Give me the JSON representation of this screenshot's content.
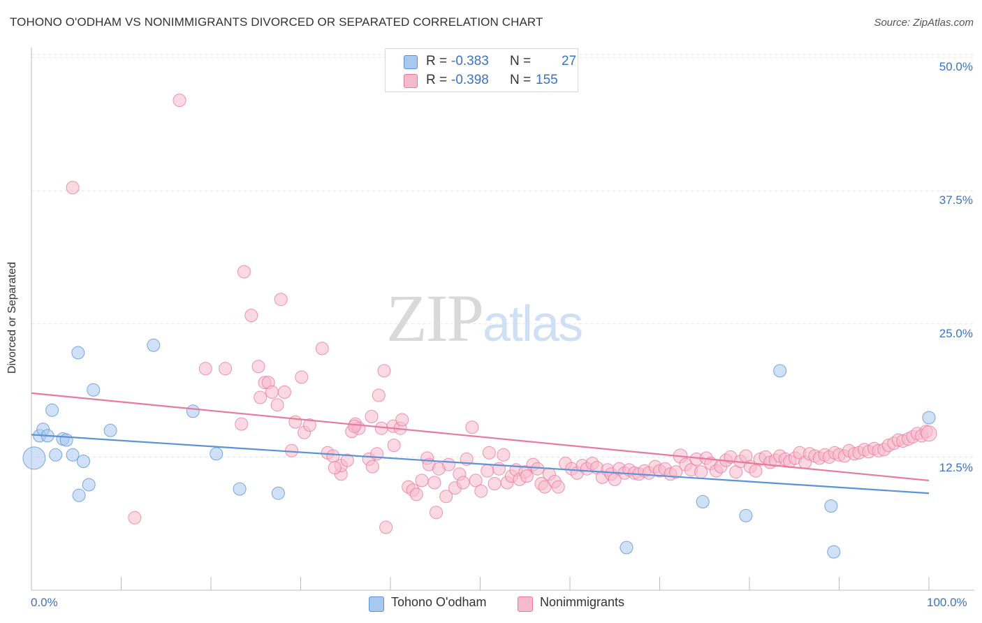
{
  "header": {
    "title": "TOHONO O'ODHAM VS NONIMMIGRANTS DIVORCED OR SEPARATED CORRELATION CHART",
    "source": "Source: ZipAtlas.com"
  },
  "watermark": {
    "zip": "ZIP",
    "atlas": "atlas"
  },
  "legend": {
    "rows": [
      {
        "r_label": "R =",
        "r_value": "-0.383",
        "n_label": "N =",
        "n_value": "27",
        "color": "#a9c8f0"
      },
      {
        "r_label": "R =",
        "r_value": "-0.398",
        "n_label": "N =",
        "n_value": "155",
        "color": "#f7b9cc"
      }
    ]
  },
  "bottom_legend": [
    {
      "label": "Tohono O'odham",
      "color": "#a9c8f0"
    },
    {
      "label": "Nonimmigrants",
      "color": "#f7b9cc"
    }
  ],
  "chart_data": {
    "type": "scatter",
    "ylabel": "Divorced or Separated",
    "xlabel": "",
    "xlim": [
      0,
      100
    ],
    "ylim": [
      0,
      52
    ],
    "x_tick_labels": [
      "0.0%",
      "100.0%"
    ],
    "y_ticks": [
      {
        "value": 12.5,
        "label": "12.5%"
      },
      {
        "value": 25.0,
        "label": "25.0%"
      },
      {
        "value": 37.5,
        "label": "37.5%"
      },
      {
        "value": 50.0,
        "label": "50.0%"
      }
    ],
    "grid": true,
    "legend_position": "top-center",
    "series": [
      {
        "name": "Tohono O'odham",
        "color": "#5b93d6",
        "fill": "#a9c8f0",
        "trend": {
          "x": [
            0,
            100
          ],
          "y": [
            14.6,
            9.1
          ]
        },
        "points": [
          [
            0.3,
            12.4,
            16
          ],
          [
            0.9,
            14.5,
            9
          ],
          [
            1.3,
            15.1,
            9
          ],
          [
            1.8,
            14.5,
            9
          ],
          [
            2.3,
            16.9,
            9
          ],
          [
            2.7,
            12.7,
            9
          ],
          [
            3.5,
            14.2,
            9
          ],
          [
            3.9,
            14.1,
            9
          ],
          [
            4.6,
            12.7,
            9
          ],
          [
            5.2,
            22.3,
            9
          ],
          [
            5.3,
            8.9,
            9
          ],
          [
            5.8,
            12.1,
            9
          ],
          [
            6.4,
            9.9,
            9
          ],
          [
            6.9,
            18.8,
            9
          ],
          [
            8.8,
            15.0,
            9
          ],
          [
            13.6,
            23.0,
            9
          ],
          [
            18.0,
            16.8,
            9
          ],
          [
            20.6,
            12.8,
            9
          ],
          [
            23.2,
            9.5,
            9
          ],
          [
            27.5,
            9.1,
            9
          ],
          [
            74.8,
            8.3,
            9
          ],
          [
            79.6,
            7.0,
            9
          ],
          [
            83.4,
            20.6,
            9
          ],
          [
            66.3,
            4.0,
            9
          ],
          [
            89.1,
            7.9,
            9
          ],
          [
            89.4,
            3.6,
            9
          ],
          [
            100.0,
            16.2,
            9
          ]
        ]
      },
      {
        "name": "Nonimmigrants",
        "color": "#e8799f",
        "fill": "#f7b9cc",
        "trend": {
          "x": [
            0,
            100
          ],
          "y": [
            18.5,
            10.3
          ]
        },
        "points": [
          [
            4.6,
            37.8,
            9
          ],
          [
            11.5,
            6.8,
            9
          ],
          [
            16.5,
            46.0,
            9
          ],
          [
            19.4,
            20.8,
            9
          ],
          [
            21.6,
            20.8,
            9
          ],
          [
            23.4,
            15.6,
            9
          ],
          [
            23.7,
            29.9,
            9
          ],
          [
            24.5,
            25.8,
            9
          ],
          [
            25.3,
            21.0,
            9
          ],
          [
            25.5,
            18.1,
            9
          ],
          [
            26.0,
            19.5,
            9
          ],
          [
            26.4,
            19.5,
            9
          ],
          [
            26.8,
            18.6,
            9
          ],
          [
            27.4,
            17.4,
            9
          ],
          [
            27.8,
            27.3,
            9
          ],
          [
            28.2,
            18.6,
            9
          ],
          [
            29.0,
            13.1,
            9
          ],
          [
            29.4,
            15.8,
            9
          ],
          [
            30.1,
            20.0,
            9
          ],
          [
            30.4,
            14.8,
            9
          ],
          [
            31.0,
            15.5,
            9
          ],
          [
            32.4,
            22.7,
            9
          ],
          [
            33.0,
            12.9,
            9
          ],
          [
            33.6,
            12.6,
            9
          ],
          [
            34.5,
            10.9,
            9
          ],
          [
            34.5,
            11.7,
            9
          ],
          [
            35.2,
            12.2,
            9
          ],
          [
            35.7,
            14.9,
            9
          ],
          [
            36.1,
            15.6,
            9
          ],
          [
            36.5,
            15.2,
            9
          ],
          [
            37.6,
            12.3,
            9
          ],
          [
            37.9,
            16.3,
            9
          ],
          [
            38.0,
            11.6,
            9
          ],
          [
            38.7,
            18.3,
            9
          ],
          [
            39.0,
            15.2,
            9
          ],
          [
            39.3,
            20.6,
            9
          ],
          [
            39.5,
            5.9,
            9
          ],
          [
            40.3,
            15.4,
            9
          ],
          [
            40.4,
            13.6,
            9
          ],
          [
            41.1,
            15.2,
            9
          ],
          [
            41.3,
            16.0,
            9
          ],
          [
            42.0,
            9.7,
            9
          ],
          [
            42.5,
            9.4,
            9
          ],
          [
            42.9,
            9.0,
            9
          ],
          [
            43.5,
            10.3,
            9
          ],
          [
            44.1,
            12.4,
            9
          ],
          [
            44.3,
            11.8,
            9
          ],
          [
            44.9,
            10.1,
            9
          ],
          [
            45.1,
            7.3,
            9
          ],
          [
            45.4,
            11.4,
            9
          ],
          [
            46.2,
            8.8,
            9
          ],
          [
            46.5,
            11.8,
            9
          ],
          [
            47.2,
            9.6,
            9
          ],
          [
            47.7,
            10.9,
            9
          ],
          [
            48.1,
            10.1,
            9
          ],
          [
            48.5,
            12.3,
            9
          ],
          [
            49.1,
            15.3,
            9
          ],
          [
            49.5,
            10.3,
            9
          ],
          [
            50.1,
            9.3,
            9
          ],
          [
            50.8,
            11.2,
            9
          ],
          [
            51.0,
            12.9,
            9
          ],
          [
            51.6,
            10.0,
            9
          ],
          [
            52.1,
            11.4,
            9
          ],
          [
            52.6,
            12.7,
            9
          ],
          [
            53.0,
            10.1,
            9
          ],
          [
            53.5,
            10.7,
            9
          ],
          [
            54.0,
            11.3,
            9
          ],
          [
            54.4,
            10.4,
            9
          ],
          [
            55.0,
            11.1,
            9
          ],
          [
            55.2,
            10.7,
            9
          ],
          [
            55.9,
            11.8,
            9
          ],
          [
            56.4,
            11.4,
            9
          ],
          [
            56.8,
            10.0,
            9
          ],
          [
            57.2,
            9.7,
            9
          ],
          [
            57.7,
            10.9,
            9
          ],
          [
            58.3,
            10.2,
            9
          ],
          [
            58.7,
            9.7,
            9
          ],
          [
            59.5,
            11.9,
            9
          ],
          [
            60.2,
            11.4,
            9
          ],
          [
            60.8,
            11.0,
            9
          ],
          [
            61.4,
            11.7,
            9
          ],
          [
            61.9,
            11.4,
            9
          ],
          [
            62.5,
            11.9,
            9
          ],
          [
            63.0,
            11.5,
            9
          ],
          [
            63.6,
            10.6,
            9
          ],
          [
            64.2,
            11.3,
            9
          ],
          [
            64.6,
            10.9,
            9
          ],
          [
            65.0,
            10.4,
            9
          ],
          [
            65.5,
            11.4,
            9
          ],
          [
            66.1,
            11.0,
            9
          ],
          [
            66.6,
            11.3,
            9
          ],
          [
            67.2,
            11.0,
            9
          ],
          [
            67.7,
            10.9,
            9
          ],
          [
            68.3,
            11.2,
            9
          ],
          [
            68.8,
            11.0,
            9
          ],
          [
            69.5,
            11.6,
            9
          ],
          [
            70.0,
            11.2,
            9
          ],
          [
            70.6,
            11.4,
            9
          ],
          [
            71.2,
            10.9,
            9
          ],
          [
            71.8,
            11.1,
            9
          ],
          [
            72.3,
            12.6,
            10
          ],
          [
            72.9,
            11.8,
            9
          ],
          [
            73.5,
            11.3,
            9
          ],
          [
            74.1,
            12.3,
            9
          ],
          [
            74.6,
            11.1,
            9
          ],
          [
            75.2,
            12.4,
            9
          ],
          [
            75.7,
            11.9,
            9
          ],
          [
            76.3,
            11.2,
            9
          ],
          [
            76.8,
            11.6,
            9
          ],
          [
            77.4,
            12.2,
            9
          ],
          [
            77.9,
            12.5,
            9
          ],
          [
            78.5,
            11.1,
            9
          ],
          [
            79.0,
            12.1,
            9
          ],
          [
            79.6,
            12.6,
            9
          ],
          [
            80.1,
            11.6,
            9
          ],
          [
            80.7,
            11.2,
            9
          ],
          [
            81.2,
            12.3,
            9
          ],
          [
            81.8,
            12.5,
            9
          ],
          [
            82.3,
            12.0,
            9
          ],
          [
            82.9,
            12.2,
            9
          ],
          [
            83.4,
            12.6,
            9
          ],
          [
            84.0,
            12.3,
            9
          ],
          [
            84.5,
            12.1,
            9
          ],
          [
            85.1,
            12.4,
            9
          ],
          [
            85.6,
            12.9,
            9
          ],
          [
            86.2,
            12.0,
            9
          ],
          [
            86.7,
            12.8,
            9
          ],
          [
            87.3,
            12.6,
            9
          ],
          [
            87.8,
            12.4,
            9
          ],
          [
            88.4,
            12.7,
            9
          ],
          [
            88.9,
            12.5,
            9
          ],
          [
            89.5,
            12.9,
            9
          ],
          [
            90.0,
            12.7,
            9
          ],
          [
            90.6,
            12.6,
            9
          ],
          [
            91.1,
            13.1,
            9
          ],
          [
            91.7,
            12.8,
            9
          ],
          [
            92.2,
            12.9,
            9
          ],
          [
            92.8,
            13.2,
            9
          ],
          [
            93.3,
            13.0,
            9
          ],
          [
            93.9,
            13.3,
            9
          ],
          [
            94.4,
            13.1,
            9
          ],
          [
            95.0,
            13.2,
            9
          ],
          [
            95.5,
            13.6,
            9
          ],
          [
            96.1,
            13.8,
            9
          ],
          [
            96.6,
            14.1,
            9
          ],
          [
            97.1,
            14.0,
            9
          ],
          [
            97.7,
            14.2,
            9
          ],
          [
            98.2,
            14.4,
            9
          ],
          [
            98.7,
            14.7,
            9
          ],
          [
            99.2,
            14.5,
            9
          ],
          [
            99.7,
            14.9,
            9
          ],
          [
            100.0,
            14.7,
            11
          ],
          [
            38.5,
            12.8,
            9
          ],
          [
            36.0,
            15.4,
            9
          ],
          [
            33.8,
            11.5,
            9
          ]
        ]
      }
    ]
  }
}
